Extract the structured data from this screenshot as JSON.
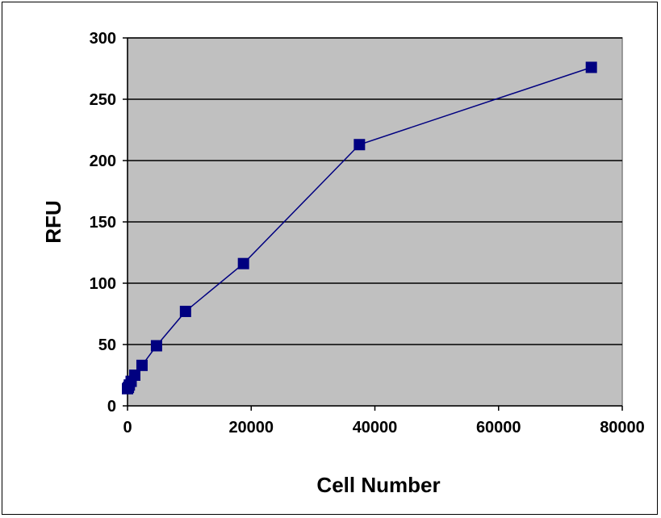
{
  "chart_data": {
    "type": "scatter",
    "title": "",
    "xlabel": "Cell Number",
    "ylabel": "RFU",
    "xlim": [
      0,
      80000
    ],
    "ylim": [
      0,
      300
    ],
    "x_ticks": [
      0,
      20000,
      40000,
      60000,
      80000
    ],
    "y_ticks": [
      0,
      50,
      100,
      150,
      200,
      250,
      300
    ],
    "x_tick_labels": [
      "0",
      "20000",
      "40000",
      "60000",
      "80000"
    ],
    "y_tick_labels": [
      "0",
      "50",
      "100",
      "150",
      "200",
      "250",
      "300"
    ],
    "grid": "horizontal",
    "legend": "none",
    "lines_connected": true,
    "marker": "square",
    "colors": {
      "series": "#000080",
      "plot_background": "#c0c0c0",
      "gridline": "#000000"
    },
    "series": [
      {
        "x": [
          0,
          146,
          293,
          586,
          1172,
          2344,
          4688,
          9375,
          18750,
          37500,
          75000
        ],
        "y": [
          14,
          15,
          17,
          20,
          25,
          33,
          49,
          77,
          116,
          213,
          276
        ]
      }
    ]
  }
}
